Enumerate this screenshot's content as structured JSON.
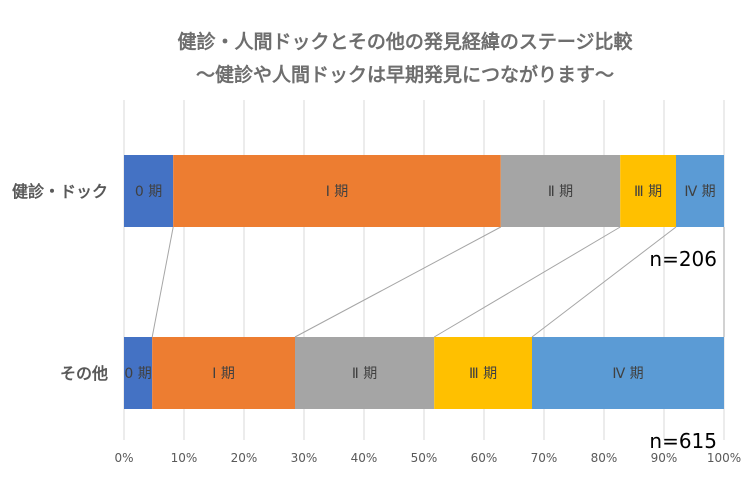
{
  "chart_data": {
    "type": "bar",
    "orientation": "horizontal",
    "stacked": true,
    "percent": true,
    "title": "健診・人間ドックとその他の発見経緯のステージ比較",
    "subtitle": "～健診や人間ドックは早期発見につながります～",
    "categories": [
      "健診・ドック",
      "その他"
    ],
    "series": [
      {
        "name": "0 期",
        "values": [
          8.2,
          4.7
        ],
        "color": "#4472c4"
      },
      {
        "name": "Ⅰ 期",
        "values": [
          54.6,
          23.8
        ],
        "color": "#ed7d31"
      },
      {
        "name": "Ⅱ 期",
        "values": [
          19.9,
          23.2
        ],
        "color": "#a5a5a5"
      },
      {
        "name": "Ⅲ 期",
        "values": [
          9.3,
          16.3
        ],
        "color": "#ffc000"
      },
      {
        "name": "Ⅳ 期",
        "values": [
          8.0,
          32.0
        ],
        "color": "#5b9bd5"
      }
    ],
    "n_labels": [
      "n=206",
      "n=615"
    ],
    "xlim": [
      0,
      100
    ],
    "xticks": [
      "0%",
      "10%",
      "20%",
      "30%",
      "40%",
      "50%",
      "60%",
      "70%",
      "80%",
      "90%",
      "100%"
    ],
    "grid": true,
    "legend": "none",
    "connector_lines": true
  }
}
